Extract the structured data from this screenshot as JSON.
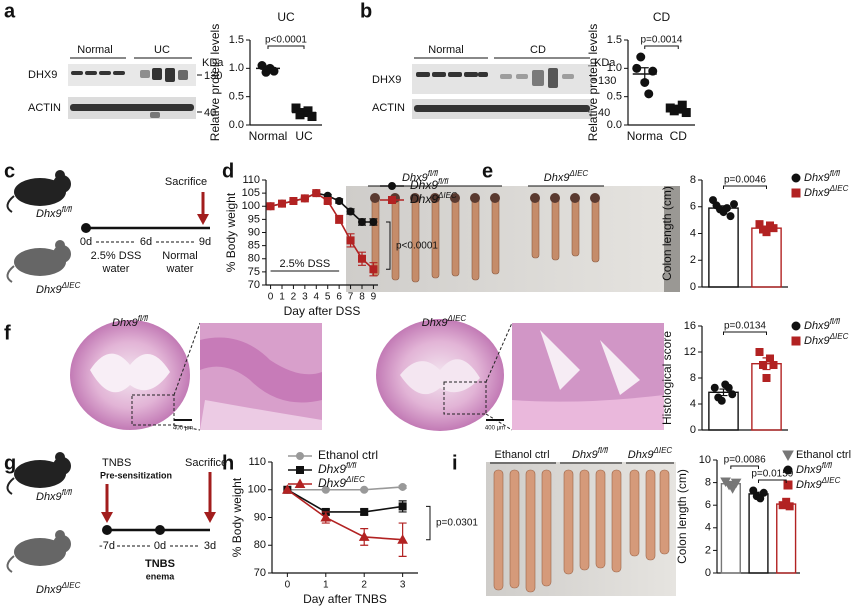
{
  "panels": {
    "labels": [
      "a",
      "b",
      "c",
      "d",
      "e",
      "f",
      "g",
      "h",
      "i"
    ]
  },
  "blots": [
    {
      "groups": [
        "Normal",
        "UC"
      ],
      "unit": "KDa",
      "proteins": [
        "DHX9",
        "ACTIN"
      ],
      "markers": [
        "130",
        "40"
      ]
    },
    {
      "groups": [
        "Normal",
        "CD"
      ],
      "unit": "KDa",
      "proteins": [
        "DHX9",
        "ACTIN"
      ],
      "markers": [
        "130",
        "40"
      ]
    }
  ],
  "schemes": [
    {
      "mice": [
        "Dhx9fl/fl",
        "Dhx9ΔIEC"
      ],
      "events": [
        "Sacrifice"
      ],
      "days": [
        "0d",
        "6d",
        "9d"
      ],
      "phases": [
        [
          "2.5% DSS",
          "water"
        ],
        [
          "Normal",
          "water"
        ]
      ]
    },
    {
      "mice": [
        "Dhx9fl/fl",
        "Dhx9ΔIEC"
      ],
      "events": [
        "TNBS",
        "Sacrifice"
      ],
      "note": "Pre-sensitization",
      "days": [
        "-7d",
        "0d",
        "3d"
      ],
      "treatment": [
        "TNBS",
        "enema"
      ]
    }
  ],
  "photos": [
    {
      "labels": [
        "Dhx9fl/fl",
        "Dhx9ΔIEC"
      ]
    },
    {
      "labels": [
        "Dhx9fl/fl",
        "Dhx9ΔIEC"
      ],
      "scale": "400 µm"
    },
    {
      "labels": [
        "Ethanol ctrl",
        "Dhx9fl/fl",
        "Dhx9ΔIEC"
      ]
    }
  ],
  "chart_data": [
    {
      "type": "dot",
      "title": "UC",
      "ylabel": "Relative protein levels",
      "categories": [
        "Normal",
        "UC"
      ],
      "markers": [
        "circle",
        "square"
      ],
      "color": "#111111",
      "values": [
        1.0,
        0.22
      ],
      "errors": [
        0.04,
        0.03
      ],
      "points": [
        [
          1.05,
          0.93,
          1.0,
          0.95
        ],
        [
          0.3,
          0.18,
          0.22,
          0.25,
          0.15
        ]
      ],
      "ylim": [
        0,
        1.5
      ],
      "yticks": [
        {
          "value": 0,
          "label": "0.0"
        },
        0.5,
        {
          "value": 1,
          "label": "1.0"
        },
        1.5
      ],
      "annotations": [
        "p<0.0001"
      ]
    },
    {
      "type": "dot",
      "title": "CD",
      "ylabel": "Relative protein levels",
      "categories": [
        "Norma",
        "CD"
      ],
      "markers": [
        "circle",
        "square"
      ],
      "color": "#111111",
      "values": [
        0.9,
        0.28
      ],
      "errors": [
        0.11,
        0.03
      ],
      "points": [
        [
          1.0,
          1.2,
          0.75,
          0.55,
          0.95
        ],
        [
          0.3,
          0.25,
          0.28,
          0.35,
          0.22
        ]
      ],
      "ylim": [
        0,
        1.5
      ],
      "yticks": [
        {
          "value": 0,
          "label": "0.0"
        },
        0.5,
        {
          "value": 1,
          "label": "1.0"
        },
        1.5
      ],
      "annotations": [
        "p=0.0014"
      ]
    },
    {
      "type": "line",
      "ylabel": "% Body weight",
      "xlabel": "Day after DSS",
      "x": [
        0,
        1,
        2,
        3,
        4,
        5,
        6,
        7,
        8,
        9
      ],
      "series": [
        {
          "name": "Dhx9fl/fl",
          "color": "#111111",
          "marker": "circle",
          "values": [
            100,
            101,
            102,
            103,
            105,
            104,
            102,
            98,
            94,
            94
          ],
          "errors": [
            0,
            0.3,
            0.3,
            0.4,
            0.5,
            0.5,
            0.8,
            1,
            1.2,
            1.2
          ]
        },
        {
          "name": "Dhx9ΔIEC",
          "color": "#b22222",
          "marker": "square",
          "values": [
            100,
            101,
            102,
            103,
            105,
            102,
            95,
            87,
            80,
            76
          ],
          "errors": [
            0,
            0.3,
            0.4,
            0.5,
            0.5,
            0.8,
            1.5,
            2.5,
            2.5,
            2.5
          ]
        }
      ],
      "xlim": [
        -0.4,
        9.4
      ],
      "xticks": [
        0,
        1,
        2,
        3,
        4,
        5,
        6,
        7,
        8,
        9
      ],
      "ylim": [
        70,
        110
      ],
      "yticks": [
        70,
        75,
        80,
        85,
        90,
        95,
        100,
        105,
        110
      ],
      "annotations": [
        "p<0.0001"
      ],
      "period": {
        "text": "2.5% DSS",
        "x": [
          0,
          6
        ]
      },
      "legend": "right"
    },
    {
      "type": "bar",
      "ylabel": "Colon length (cm)",
      "series": [
        {
          "name": "Dhx9fl/fl",
          "color": "#111111",
          "marker": "circle",
          "values": [
            5.9
          ],
          "errors": [
            0.17
          ],
          "points": [
            6.5,
            6.1,
            5.8,
            5.6,
            5.9,
            5.3,
            6.2
          ]
        },
        {
          "name": "Dhx9ΔIEC",
          "color": "#b22222",
          "marker": "square",
          "values": [
            4.4
          ],
          "errors": [
            0.12
          ],
          "points": [
            4.7,
            4.3,
            4.1,
            4.6,
            4.4
          ]
        }
      ],
      "ylim": [
        0,
        8
      ],
      "yticks": [
        0,
        2,
        4,
        6,
        8
      ],
      "annotations": [
        "p=0.0046"
      ],
      "legend": "right"
    },
    {
      "type": "bar",
      "ylabel": "Histological score",
      "series": [
        {
          "name": "Dhx9fl/fl",
          "color": "#111111",
          "marker": "circle",
          "values": [
            5.8
          ],
          "errors": [
            0.5
          ],
          "points": [
            6.5,
            5.0,
            4.5,
            7.0,
            6.5,
            5.5
          ]
        },
        {
          "name": "Dhx9ΔIEC",
          "color": "#b22222",
          "marker": "square",
          "values": [
            10.2
          ],
          "errors": [
            0.9
          ],
          "points": [
            12,
            10,
            8,
            11,
            10
          ]
        }
      ],
      "ylim": [
        0,
        16
      ],
      "yticks": [
        0,
        4,
        8,
        12,
        16
      ],
      "annotations": [
        "p=0.0134"
      ],
      "legend": "right"
    },
    {
      "type": "line",
      "ylabel": "% Body weight",
      "xlabel": "Day after TNBS",
      "x": [
        0,
        1,
        2,
        3
      ],
      "series": [
        {
          "name": "Ethanol ctrl",
          "color": "#999999",
          "marker": "circle",
          "values": [
            100,
            100,
            100,
            101
          ],
          "errors": [
            0,
            0.3,
            0.3,
            0.5
          ]
        },
        {
          "name": "Dhx9fl/fl",
          "color": "#111111",
          "marker": "square",
          "values": [
            100,
            92,
            92,
            94
          ],
          "errors": [
            0,
            1,
            1,
            2
          ]
        },
        {
          "name": "Dhx9ΔIEC",
          "color": "#b22222",
          "marker": "triangle",
          "values": [
            100,
            90,
            83,
            82
          ],
          "errors": [
            0,
            2,
            3,
            6
          ]
        }
      ],
      "xlim": [
        -0.4,
        3.4
      ],
      "xticks": [
        0,
        1,
        2,
        3
      ],
      "ylim": [
        70,
        110
      ],
      "yticks": [
        70,
        80,
        90,
        100,
        110
      ],
      "annotations": [
        "p=0.0301"
      ],
      "legend": "top"
    },
    {
      "type": "bar",
      "ylabel": "Colon length (cm)",
      "series": [
        {
          "name": "Ethanol ctrl",
          "color": "#777777",
          "marker": "triangle-down",
          "values": [
            7.9
          ],
          "errors": [
            0.1
          ],
          "points": [
            8.1,
            7.8,
            7.5,
            8.0
          ]
        },
        {
          "name": "Dhx9fl/fl",
          "color": "#111111",
          "marker": "circle",
          "values": [
            7.0
          ],
          "errors": [
            0.15
          ],
          "points": [
            7.3,
            6.8,
            6.6,
            7.1
          ]
        },
        {
          "name": "Dhx9ΔIEC",
          "color": "#b22222",
          "marker": "square",
          "values": [
            6.1
          ],
          "errors": [
            0.1
          ],
          "points": [
            6.0,
            6.3,
            5.9
          ]
        }
      ],
      "ylim": [
        0,
        10
      ],
      "yticks": [
        0,
        2,
        4,
        6,
        8,
        10
      ],
      "annotations": [
        "p=0.0086",
        "p=0.0159"
      ],
      "legend": "right"
    }
  ]
}
